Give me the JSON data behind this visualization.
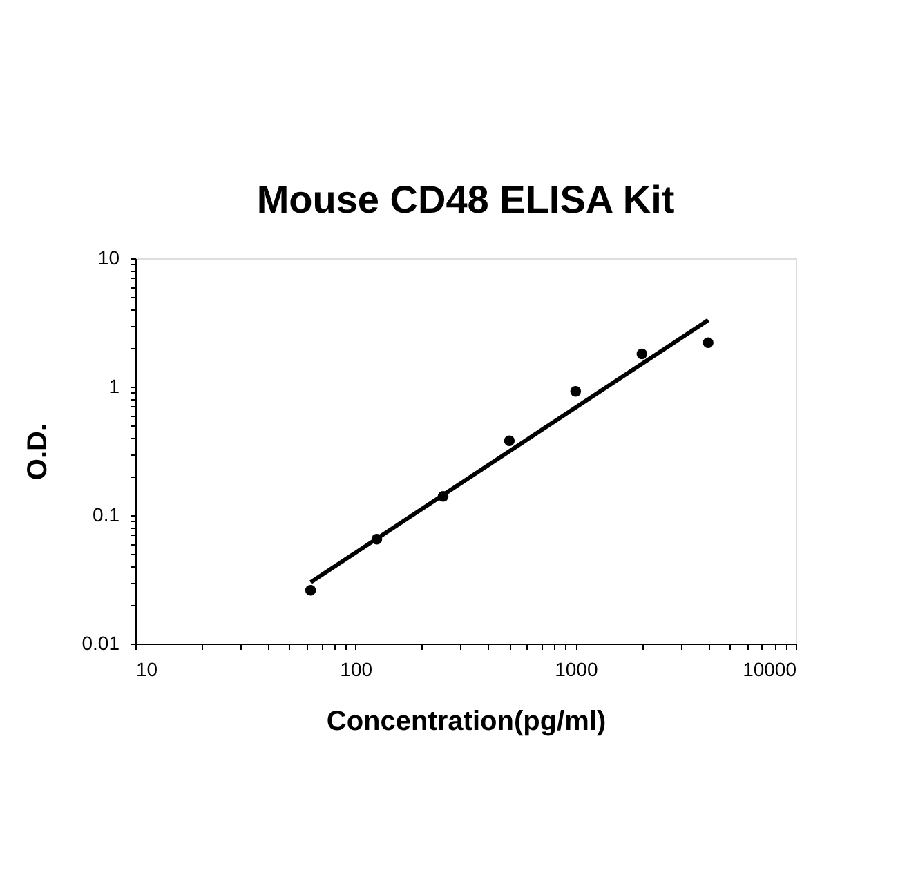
{
  "chart_data": {
    "type": "scatter",
    "title": "Mouse CD48 ELISA Kit",
    "xlabel": "Concentration(pg/ml)",
    "ylabel": "O.D.",
    "log": "xy",
    "marker": "circle",
    "grid": false,
    "series": [
      {
        "color": "#000000",
        "x": [
          62.5,
          125,
          250,
          500,
          1000,
          2000,
          4000
        ],
        "values": [
          0.026,
          0.065,
          0.14,
          0.38,
          0.92,
          1.8,
          2.2
        ]
      },
      {
        "type": "line",
        "color": "#000000",
        "line_style": "solid",
        "marker": "none",
        "x": [
          62.5,
          4000
        ],
        "values": [
          0.03,
          3.3
        ]
      }
    ],
    "xlim": [
      10,
      10000
    ],
    "ylim": [
      0.01,
      10
    ],
    "xticks": [
      10,
      {
        "value": 20,
        "label": null
      },
      {
        "value": 30,
        "label": null
      },
      {
        "value": 40,
        "label": null
      },
      {
        "value": 50,
        "label": null
      },
      {
        "value": 60,
        "label": null
      },
      {
        "value": 70,
        "label": null
      },
      {
        "value": 80,
        "label": null
      },
      {
        "value": 90,
        "label": null
      },
      100,
      {
        "value": 200,
        "label": null
      },
      {
        "value": 300,
        "label": null
      },
      {
        "value": 400,
        "label": null
      },
      {
        "value": 500,
        "label": null
      },
      {
        "value": 600,
        "label": null
      },
      {
        "value": 700,
        "label": null
      },
      {
        "value": 800,
        "label": null
      },
      {
        "value": 900,
        "label": null
      },
      1000,
      {
        "value": 2000,
        "label": null
      },
      {
        "value": 3000,
        "label": null
      },
      {
        "value": 4000,
        "label": null
      },
      {
        "value": 5000,
        "label": null
      },
      {
        "value": 6000,
        "label": null
      },
      {
        "value": 7000,
        "label": null
      },
      {
        "value": 8000,
        "label": null
      },
      {
        "value": 9000,
        "label": null
      },
      10000
    ],
    "yticks": [
      0.01,
      {
        "value": 0.02,
        "label": null
      },
      {
        "value": 0.03,
        "label": null
      },
      {
        "value": 0.04,
        "label": null
      },
      {
        "value": 0.05,
        "label": null
      },
      {
        "value": 0.06,
        "label": null
      },
      {
        "value": 0.07,
        "label": null
      },
      {
        "value": 0.08,
        "label": null
      },
      {
        "value": 0.09,
        "label": null
      },
      0.1,
      {
        "value": 0.2,
        "label": null
      },
      {
        "value": 0.3,
        "label": null
      },
      {
        "value": 0.4,
        "label": null
      },
      {
        "value": 0.5,
        "label": null
      },
      {
        "value": 0.6,
        "label": null
      },
      {
        "value": 0.7,
        "label": null
      },
      {
        "value": 0.8,
        "label": null
      },
      {
        "value": 0.9,
        "label": null
      },
      1,
      {
        "value": 2,
        "label": null
      },
      {
        "value": 3,
        "label": null
      },
      {
        "value": 4,
        "label": null
      },
      {
        "value": 5,
        "label": null
      },
      {
        "value": 6,
        "label": null
      },
      {
        "value": 7,
        "label": null
      },
      {
        "value": 8,
        "label": null
      },
      {
        "value": 9,
        "label": null
      },
      10
    ]
  }
}
